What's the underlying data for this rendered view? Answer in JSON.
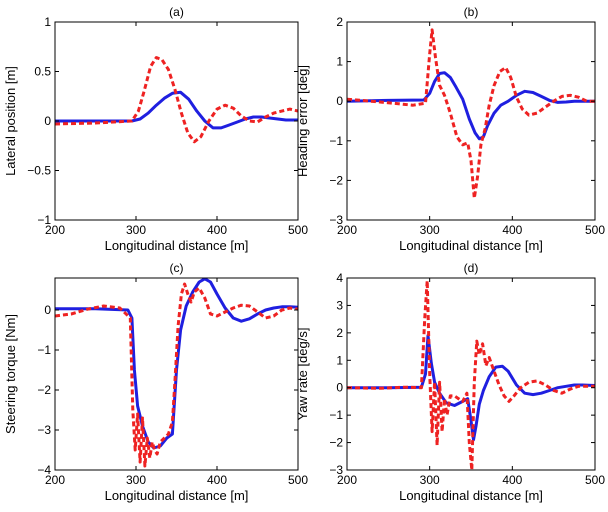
{
  "figure": {
    "colors": {
      "series_solid": "#1f1fe0",
      "series_dashed": "#ee2222",
      "axes": "#000000",
      "background": "#ffffff"
    }
  },
  "chart_data": [
    {
      "type": "line",
      "title": "(a)",
      "xlabel": "Longitudinal distance [m]",
      "ylabel": "Lateral position [m]",
      "xlim": [
        200,
        500
      ],
      "ylim": [
        -1,
        1
      ],
      "xticks": [
        "200",
        "300",
        "400",
        "500"
      ],
      "yticks": [
        "−1",
        "−0.5",
        "0",
        "0.5",
        "1"
      ],
      "ytick_values": [
        -1,
        -0.5,
        0,
        0.5,
        1
      ],
      "grid": false,
      "series": [
        {
          "style": "solid",
          "color": "#1f1fe0",
          "x": [
            200,
            250,
            295,
            305,
            315,
            325,
            335,
            345,
            355,
            365,
            375,
            385,
            395,
            405,
            415,
            425,
            435,
            445,
            455,
            465,
            475,
            485,
            500
          ],
          "y": [
            0,
            0,
            0,
            0.02,
            0.08,
            0.16,
            0.23,
            0.28,
            0.29,
            0.22,
            0.1,
            0,
            -0.07,
            -0.07,
            -0.04,
            -0.01,
            0.02,
            0.04,
            0.04,
            0.03,
            0.02,
            0.01,
            0.01
          ]
        },
        {
          "style": "dashed",
          "color": "#ee2222",
          "x": [
            200,
            250,
            295,
            303,
            310,
            318,
            325,
            332,
            340,
            348,
            356,
            364,
            372,
            380,
            390,
            400,
            410,
            420,
            430,
            440,
            450,
            460,
            470,
            480,
            490,
            500
          ],
          "y": [
            -0.03,
            -0.02,
            0,
            0.1,
            0.3,
            0.55,
            0.64,
            0.62,
            0.52,
            0.32,
            0.08,
            -0.12,
            -0.21,
            -0.16,
            0,
            0.12,
            0.16,
            0.13,
            0.05,
            0,
            -0.01,
            0.04,
            0.08,
            0.1,
            0.12,
            0.1
          ]
        }
      ]
    },
    {
      "type": "line",
      "title": "(b)",
      "xlabel": "Longitudinal distance [m]",
      "ylabel": "Heading error [deg]",
      "xlim": [
        200,
        500
      ],
      "ylim": [
        -3,
        2
      ],
      "xticks": [
        "200",
        "300",
        "400",
        "500"
      ],
      "yticks": [
        "−3",
        "−2",
        "−1",
        "0",
        "1",
        "2"
      ],
      "ytick_values": [
        -3,
        -2,
        -1,
        0,
        1,
        2
      ],
      "grid": false,
      "series": [
        {
          "style": "solid",
          "color": "#1f1fe0",
          "x": [
            200,
            250,
            293,
            300,
            306,
            312,
            318,
            325,
            332,
            340,
            348,
            355,
            360,
            365,
            370,
            378,
            386,
            395,
            405,
            415,
            425,
            435,
            445,
            455,
            465,
            475,
            485,
            500
          ],
          "y": [
            0,
            0.02,
            0.03,
            0.2,
            0.5,
            0.7,
            0.72,
            0.6,
            0.35,
            0.05,
            -0.45,
            -0.8,
            -0.95,
            -0.9,
            -0.62,
            -0.3,
            -0.1,
            0,
            0.15,
            0.25,
            0.22,
            0.12,
            0.02,
            -0.03,
            -0.02,
            0,
            0,
            0
          ]
        },
        {
          "style": "dashed",
          "color": "#ee2222",
          "x": [
            200,
            240,
            280,
            295,
            300,
            303,
            307,
            312,
            318,
            325,
            333,
            340,
            346,
            350,
            354,
            358,
            362,
            367,
            372,
            378,
            385,
            392,
            398,
            405,
            412,
            420,
            430,
            440,
            450,
            460,
            470,
            480,
            490,
            500
          ],
          "y": [
            0.05,
            -0.02,
            -0.1,
            -0.05,
            1.2,
            1.8,
            1.1,
            0.4,
            0.15,
            -0.3,
            -0.9,
            -1.1,
            -1.05,
            -1.5,
            -2.45,
            -1.9,
            -1.1,
            -0.7,
            -0.1,
            0.4,
            0.75,
            0.85,
            0.6,
            0.1,
            -0.2,
            -0.35,
            -0.3,
            -0.15,
            0,
            0.12,
            0.15,
            0.1,
            0,
            0
          ]
        }
      ]
    },
    {
      "type": "line",
      "title": "(c)",
      "xlabel": "Longitudinal distance [m]",
      "ylabel": "Steering torque [Nm]",
      "xlim": [
        200,
        500
      ],
      "ylim": [
        -4,
        0.8
      ],
      "xticks": [
        "200",
        "300",
        "400",
        "500"
      ],
      "yticks": [
        "−4",
        "−3",
        "−2",
        "−1",
        "0"
      ],
      "ytick_values": [
        -4,
        -3,
        -2,
        -1,
        0
      ],
      "grid": false,
      "series": [
        {
          "style": "solid",
          "color": "#1f1fe0",
          "x": [
            200,
            250,
            290,
            295,
            298,
            302,
            308,
            315,
            322,
            330,
            338,
            345,
            350,
            355,
            362,
            370,
            378,
            385,
            392,
            400,
            410,
            420,
            430,
            440,
            450,
            460,
            470,
            480,
            490,
            500
          ],
          "y": [
            0.03,
            0.03,
            0,
            -0.2,
            -1.5,
            -2.4,
            -2.9,
            -3.3,
            -3.45,
            -3.4,
            -3.2,
            -3.1,
            -1.5,
            -0.5,
            0.1,
            0.45,
            0.7,
            0.78,
            0.7,
            0.4,
            0.05,
            -0.2,
            -0.28,
            -0.22,
            -0.1,
            0,
            0.05,
            0.08,
            0.08,
            0.07
          ]
        },
        {
          "style": "dashed",
          "color": "#ee2222",
          "x": [
            200,
            220,
            240,
            260,
            280,
            293,
            296,
            299,
            302,
            305,
            308,
            311,
            314,
            317,
            320,
            323,
            326,
            330,
            335,
            340,
            345,
            348,
            352,
            356,
            360,
            364,
            368,
            372,
            378,
            385,
            392,
            400,
            410,
            420,
            430,
            440,
            450,
            460,
            470,
            480,
            490,
            500
          ],
          "y": [
            -0.15,
            -0.1,
            0.02,
            0.1,
            0.05,
            -0.2,
            -2.5,
            -3.5,
            -2.6,
            -3.8,
            -2.7,
            -3.9,
            -3.2,
            -3.7,
            -3.3,
            -3.5,
            -3.6,
            -3.3,
            -3.2,
            -3.1,
            -2.8,
            -1.8,
            -0.4,
            0.4,
            0.65,
            0.4,
            0.2,
            0.45,
            0.55,
            0.3,
            -0.1,
            -0.15,
            -0.05,
            0.05,
            0.12,
            0.1,
            -0.05,
            -0.2,
            -0.15,
            0,
            0.05,
            0.02
          ]
        }
      ]
    },
    {
      "type": "line",
      "title": "(d)",
      "xlabel": "Longitudinal distance [m]",
      "ylabel": "Yaw rate [deg/s]",
      "xlim": [
        200,
        500
      ],
      "ylim": [
        -3,
        4
      ],
      "xticks": [
        "200",
        "300",
        "400",
        "500"
      ],
      "yticks": [
        "−3",
        "−2",
        "−1",
        "0",
        "1",
        "2",
        "3",
        "4"
      ],
      "ytick_values": [
        -3,
        -2,
        -1,
        0,
        1,
        2,
        3,
        4
      ],
      "grid": false,
      "series": [
        {
          "style": "solid",
          "color": "#1f1fe0",
          "x": [
            200,
            250,
            290,
            295,
            298,
            302,
            306,
            312,
            320,
            330,
            340,
            346,
            350,
            353,
            356,
            360,
            365,
            372,
            380,
            388,
            395,
            405,
            415,
            425,
            435,
            445,
            455,
            465,
            475,
            485,
            500
          ],
          "y": [
            0,
            0,
            0.02,
            0.5,
            1.9,
            0.9,
            0.2,
            -0.2,
            -0.55,
            -0.65,
            -0.5,
            -0.4,
            -1.2,
            -1.9,
            -1.4,
            -0.6,
            -0.1,
            0.4,
            0.75,
            0.78,
            0.6,
            0.1,
            -0.2,
            -0.25,
            -0.2,
            -0.1,
            0,
            0.05,
            0.1,
            0.1,
            0.08
          ]
        },
        {
          "style": "dashed",
          "color": "#ee2222",
          "x": [
            200,
            240,
            270,
            290,
            294,
            297,
            300,
            303,
            306,
            309,
            312,
            315,
            318,
            321,
            325,
            330,
            335,
            340,
            345,
            348,
            351,
            354,
            357,
            360,
            364,
            368,
            372,
            378,
            384,
            390,
            396,
            402,
            410,
            420,
            430,
            440,
            450,
            460,
            470,
            480,
            490,
            500
          ],
          "y": [
            0,
            -0.02,
            0.02,
            0,
            2.5,
            3.9,
            0.5,
            -1.6,
            0.2,
            -2.1,
            0.2,
            -1.6,
            -0.4,
            -1.0,
            -0.3,
            -0.3,
            -0.4,
            -0.5,
            -0.2,
            -2.0,
            -3.0,
            0.2,
            1.7,
            1.2,
            1.6,
            0.8,
            1.1,
            0.6,
            0.1,
            -0.3,
            -0.5,
            -0.3,
            0,
            0.2,
            0.25,
            0.1,
            -0.1,
            -0.2,
            -0.05,
            0.05,
            0.05,
            0.05
          ]
        }
      ]
    }
  ]
}
